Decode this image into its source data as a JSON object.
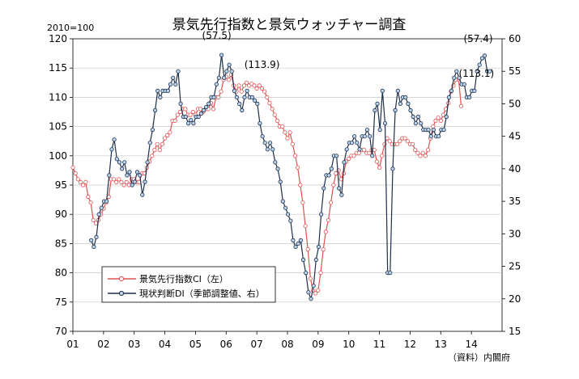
{
  "chart_data": {
    "type": "line",
    "title": "景気先行指数と景気ウォッチャー調査",
    "base_note": "2010=100",
    "source_note": "（資料）内閣府",
    "x_ticks": [
      "01",
      "02",
      "03",
      "04",
      "05",
      "06",
      "07",
      "08",
      "09",
      "10",
      "11",
      "12",
      "13",
      "14"
    ],
    "x_range": [
      2001.0,
      2015.0
    ],
    "left_axis": {
      "ylim": [
        70,
        120
      ],
      "ticks": [
        70,
        75,
        80,
        85,
        90,
        95,
        100,
        105,
        110,
        115,
        120
      ]
    },
    "right_axis": {
      "ylim": [
        15,
        60
      ],
      "ticks": [
        15,
        20,
        25,
        30,
        35,
        40,
        45,
        50,
        55,
        60
      ]
    },
    "legend_position": "lower-left",
    "grid": "horizontal, left axis",
    "annotations": [
      {
        "text": "(57.5)",
        "color": "#000000"
      },
      {
        "text": "(113.9)",
        "color": "#c0392b"
      },
      {
        "text": "(57.4)",
        "color": "#000000"
      },
      {
        "text": "(113.1)",
        "color": "#c0392b"
      }
    ],
    "series": [
      {
        "name": "景気先行指数CI（左）",
        "axis": "left",
        "color": "#e05050",
        "marker_fill": "#ffffff",
        "x_start": 2001.0,
        "x_step": 0.08333,
        "values": [
          98,
          97,
          96,
          95.5,
          95,
          95.5,
          93,
          92,
          89,
          88.5,
          89,
          90,
          91,
          92,
          93,
          96,
          96,
          95.5,
          96,
          95.5,
          95,
          95.5,
          95,
          96,
          96,
          95.5,
          95.5,
          97,
          97,
          98,
          99,
          100,
          101,
          102,
          101,
          102,
          103,
          103.5,
          104,
          106,
          106,
          107,
          107.5,
          108,
          108,
          107,
          107,
          107.5,
          107,
          108,
          108,
          107.5,
          108,
          108,
          109,
          108,
          110,
          110,
          111,
          113,
          113.5,
          113,
          113.9,
          112,
          111,
          112,
          111,
          112,
          112.5,
          112,
          112.3,
          112,
          111.5,
          112,
          111.5,
          111,
          110,
          109,
          108,
          107,
          106,
          105,
          105,
          104,
          103,
          104,
          102,
          100,
          98,
          95,
          92,
          88,
          84,
          79,
          77,
          76.5,
          77,
          80,
          84,
          87,
          89,
          92,
          95,
          97,
          97.5,
          96,
          97,
          99,
          99.5,
          100,
          100,
          100.5,
          100.5,
          101,
          101,
          100.5,
          100.5,
          101,
          101,
          99,
          98,
          100,
          102,
          103,
          102.5,
          102,
          102,
          102,
          102.5,
          103,
          103,
          102.5,
          102,
          102,
          101,
          100.5,
          100,
          100.5,
          100,
          101,
          103,
          105,
          106,
          106.5,
          106,
          107,
          108,
          109,
          111,
          112,
          113,
          113.1,
          108.5
        ]
      },
      {
        "name": "現状判断DI（季節調整値、右）",
        "axis": "right",
        "color": "#1f2f4a",
        "marker_fill": "#b9d3ea",
        "x_start": 2001.6,
        "x_step": 0.08333,
        "values": [
          29,
          28,
          29.5,
          33,
          34,
          35,
          35,
          39,
          43,
          44.5,
          41.5,
          41,
          40,
          41,
          39,
          39.5,
          37.5,
          38,
          39.5,
          39,
          36,
          38,
          41,
          44,
          46,
          49,
          52,
          51,
          52,
          52,
          52,
          53,
          54,
          53,
          55,
          50,
          48,
          48,
          47,
          47.5,
          47,
          48,
          48,
          48.5,
          49,
          49.5,
          50,
          51,
          51,
          53,
          54,
          57.5,
          54,
          55,
          56,
          55,
          52,
          51,
          50,
          49,
          51,
          52,
          51,
          51,
          50.5,
          50,
          47,
          45,
          44,
          43,
          44,
          43,
          41,
          40,
          38,
          35,
          34,
          33,
          32,
          29,
          28,
          28.5,
          29,
          26,
          24,
          21,
          20,
          22,
          26,
          28,
          33,
          37,
          39,
          39,
          40,
          42,
          42,
          37,
          36,
          41,
          43,
          44,
          44,
          45,
          44,
          43,
          45,
          45,
          46,
          45,
          42,
          49,
          50,
          46,
          52,
          47,
          24,
          24,
          40,
          49,
          52,
          50,
          51,
          51,
          50,
          49,
          48,
          47,
          48,
          47,
          46,
          46,
          46,
          45,
          46,
          45,
          45,
          46,
          46,
          48,
          51,
          52,
          54,
          55,
          54,
          53,
          53,
          51,
          51,
          52,
          52,
          55,
          56,
          57,
          57.4,
          55,
          55
        ]
      }
    ]
  }
}
